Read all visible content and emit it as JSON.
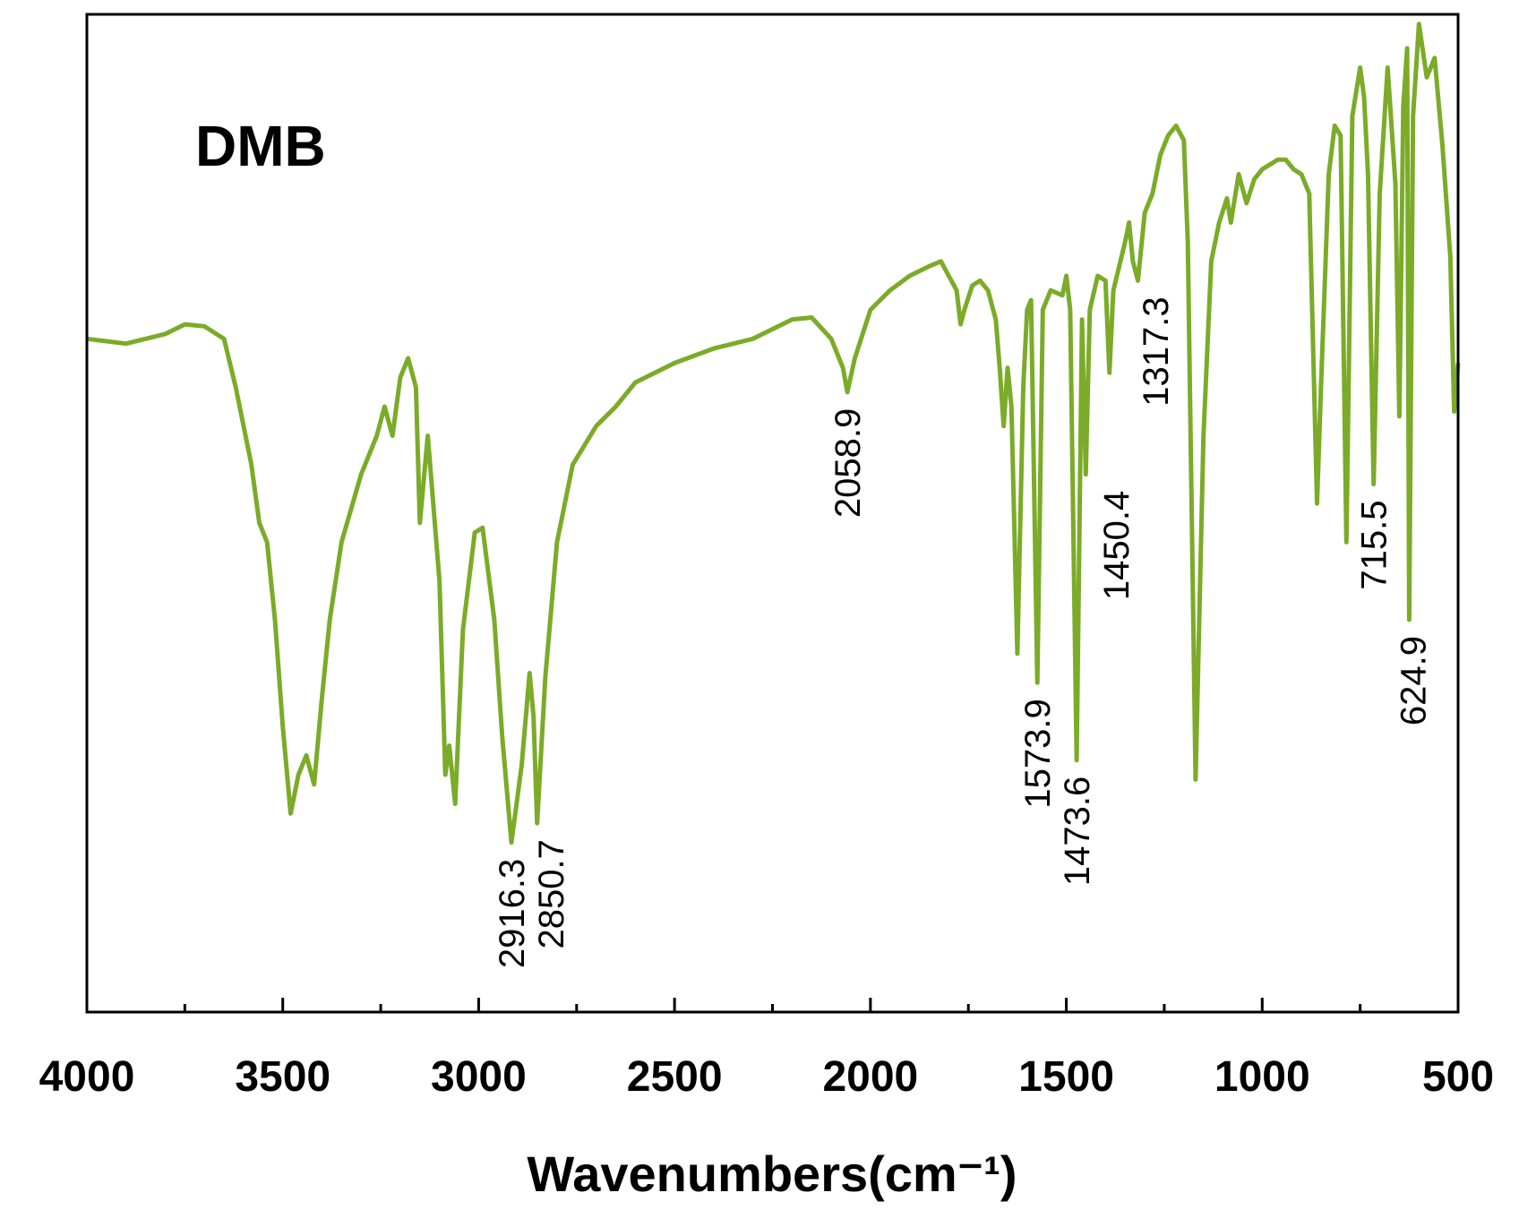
{
  "chart_data": {
    "type": "line",
    "title": "DMB",
    "x_label": "Wavenumbers(cm⁻¹)",
    "color": "#7bab28",
    "xlim": [
      4000,
      500
    ],
    "ylim": [
      0,
      103
    ],
    "xticks": [
      4000,
      3500,
      3000,
      2500,
      2000,
      1500,
      1000,
      500
    ],
    "xminorticks": [
      3750,
      3250,
      2750,
      2250,
      1750,
      1250,
      750
    ],
    "x": [
      4000,
      3900,
      3800,
      3750,
      3700,
      3650,
      3620,
      3580,
      3560,
      3540,
      3520,
      3500,
      3480,
      3460,
      3440,
      3420,
      3400,
      3380,
      3350,
      3300,
      3260,
      3240,
      3220,
      3200,
      3180,
      3160,
      3150,
      3130,
      3100,
      3085,
      3075,
      3060,
      3040,
      3010,
      2990,
      2960,
      2940,
      2916.3,
      2890,
      2870,
      2860,
      2850.7,
      2830,
      2800,
      2760,
      2700,
      2650,
      2600,
      2500,
      2400,
      2300,
      2200,
      2150,
      2100,
      2070,
      2058.9,
      2040,
      2000,
      1950,
      1900,
      1850,
      1820,
      1800,
      1780,
      1770,
      1760,
      1740,
      1720,
      1700,
      1680,
      1670,
      1660,
      1650,
      1640,
      1625,
      1610,
      1600,
      1590,
      1573.9,
      1560,
      1540,
      1510,
      1500,
      1490,
      1473.6,
      1460,
      1450.4,
      1440,
      1420,
      1400,
      1390,
      1380,
      1350,
      1340,
      1330,
      1317.3,
      1300,
      1280,
      1260,
      1240,
      1220,
      1200,
      1190,
      1170,
      1150,
      1130,
      1110,
      1090,
      1080,
      1060,
      1040,
      1020,
      1000,
      980,
      960,
      940,
      920,
      900,
      880,
      860,
      850,
      830,
      815,
      800,
      785,
      770,
      750,
      740,
      730,
      715.5,
      700,
      680,
      660,
      650,
      640,
      630,
      624.9,
      615,
      600,
      580,
      560,
      540,
      520,
      510,
      500
    ],
    "values": [
      69.5,
      69.0,
      70.0,
      71.0,
      70.8,
      69.5,
      64.5,
      56.5,
      50.5,
      48.5,
      40.5,
      29.5,
      20.5,
      24.5,
      26.5,
      23.5,
      32.5,
      40.5,
      48.5,
      55.5,
      59.5,
      62.5,
      59.5,
      65.5,
      67.5,
      64.5,
      50.5,
      59.5,
      44.5,
      24.5,
      27.5,
      21.5,
      39.5,
      49.5,
      50.0,
      40.5,
      28.5,
      17.5,
      25.5,
      35.0,
      30.5,
      19.5,
      34.5,
      48.5,
      56.5,
      60.5,
      62.5,
      65.0,
      67.0,
      68.5,
      69.5,
      71.5,
      71.7,
      69.5,
      66.5,
      64.0,
      67.5,
      72.5,
      74.5,
      76.0,
      77.0,
      77.5,
      76.0,
      74.5,
      71.0,
      72.5,
      75.0,
      75.5,
      74.5,
      71.5,
      66.5,
      60.5,
      66.5,
      62.5,
      37.0,
      64.5,
      72.5,
      73.5,
      34.0,
      72.5,
      74.5,
      74.0,
      76.0,
      72.5,
      26.0,
      71.5,
      55.5,
      72.5,
      76.0,
      75.5,
      66.0,
      74.5,
      79.5,
      81.5,
      77.5,
      75.5,
      82.5,
      84.5,
      88.5,
      90.5,
      91.5,
      90.0,
      79.5,
      24.0,
      59.5,
      77.5,
      81.5,
      84.0,
      81.5,
      86.5,
      83.5,
      86.0,
      87.0,
      87.5,
      88.0,
      88.0,
      87.0,
      86.5,
      84.5,
      52.5,
      64.5,
      86.5,
      91.5,
      90.5,
      48.5,
      92.5,
      97.5,
      94.5,
      86.5,
      54.5,
      84.5,
      97.5,
      85.5,
      61.5,
      93.5,
      99.5,
      40.5,
      92.5,
      102.0,
      96.5,
      98.5,
      89.5,
      78.0,
      62.0,
      67.0
    ],
    "annotations": [
      {
        "x": 2916.3,
        "label": "2916.3"
      },
      {
        "x": 2850.7,
        "label": "2850.7"
      },
      {
        "x": 2058.9,
        "label": "2058.9"
      },
      {
        "x": 1573.9,
        "label": "1573.9"
      },
      {
        "x": 1473.6,
        "label": "1473.6"
      },
      {
        "x": 1450.4,
        "label": "1450.4"
      },
      {
        "x": 1317.3,
        "label": "1317.3"
      },
      {
        "x": 715.5,
        "label": "715.5"
      },
      {
        "x": 624.9,
        "label": "624.9"
      }
    ]
  }
}
